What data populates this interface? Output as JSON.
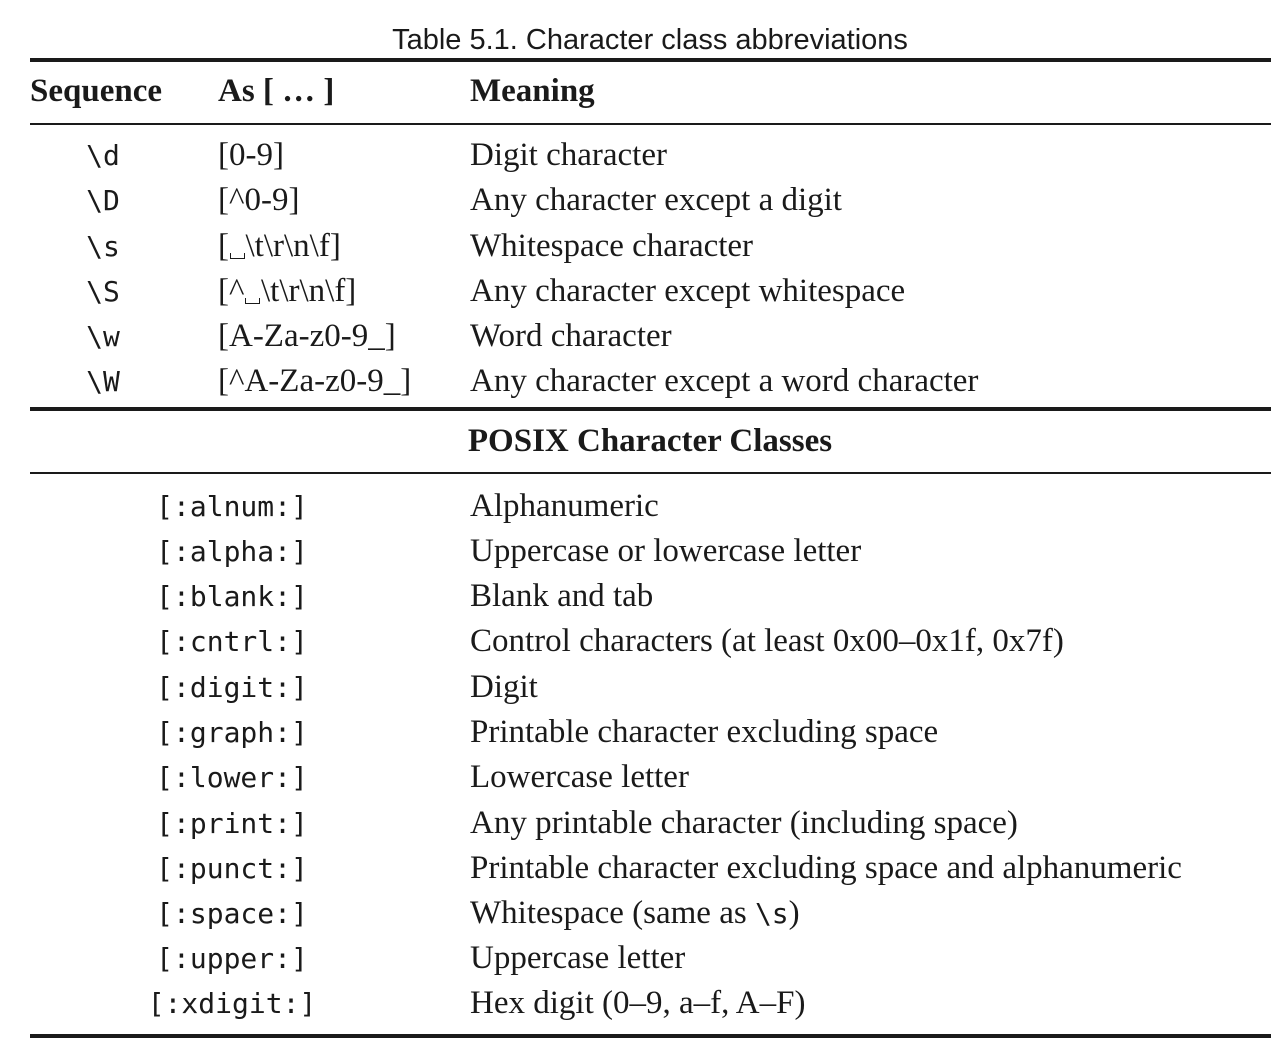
{
  "caption": "Table 5.1. Character class abbreviations",
  "headers": {
    "sequence": "Sequence",
    "as": "As [ … ]",
    "meaning": "Meaning"
  },
  "abbreviations": [
    {
      "seq": "\\d",
      "as_pre": "[0-9]",
      "as_post": "",
      "meaning": "Digit character"
    },
    {
      "seq": "\\D",
      "as_pre": "[^0-9]",
      "as_post": "",
      "meaning": "Any character except a digit"
    },
    {
      "seq": "\\s",
      "as_pre": "[",
      "as_post": "\\t\\r\\n\\f]",
      "meaning": "Whitespace character"
    },
    {
      "seq": "\\S",
      "as_pre": "[^",
      "as_post": "\\t\\r\\n\\f]",
      "meaning": "Any character except whitespace"
    },
    {
      "seq": "\\w",
      "as_pre": "[A-Za-z0-9_]",
      "as_post": "",
      "meaning": "Word character"
    },
    {
      "seq": "\\W",
      "as_pre": "[^A-Za-z0-9_]",
      "as_post": "",
      "meaning": "Any character except a word character"
    }
  ],
  "posix_heading": "POSIX Character Classes",
  "posix": [
    {
      "cls": "[:alnum:]",
      "meaning": "Alphanumeric"
    },
    {
      "cls": "[:alpha:]",
      "meaning": "Uppercase or lowercase letter"
    },
    {
      "cls": "[:blank:]",
      "meaning": "Blank and tab"
    },
    {
      "cls": "[:cntrl:]",
      "meaning": "Control characters (at least 0x00–0x1f, 0x7f)"
    },
    {
      "cls": "[:digit:]",
      "meaning": "Digit"
    },
    {
      "cls": "[:graph:]",
      "meaning": "Printable character excluding space"
    },
    {
      "cls": "[:lower:]",
      "meaning": "Lowercase letter"
    },
    {
      "cls": "[:print:]",
      "meaning": "Any printable character (including space)"
    },
    {
      "cls": "[:punct:]",
      "meaning": "Printable character excluding space and alphanumeric"
    },
    {
      "cls": "[:space:]",
      "meaning_pre": "Whitespace (same as ",
      "meaning_code": "\\s",
      "meaning_post": ")"
    },
    {
      "cls": "[:upper:]",
      "meaning": "Uppercase letter"
    },
    {
      "cls": "[:xdigit:]",
      "meaning": "Hex digit (0–9, a–f, A–F)"
    }
  ]
}
